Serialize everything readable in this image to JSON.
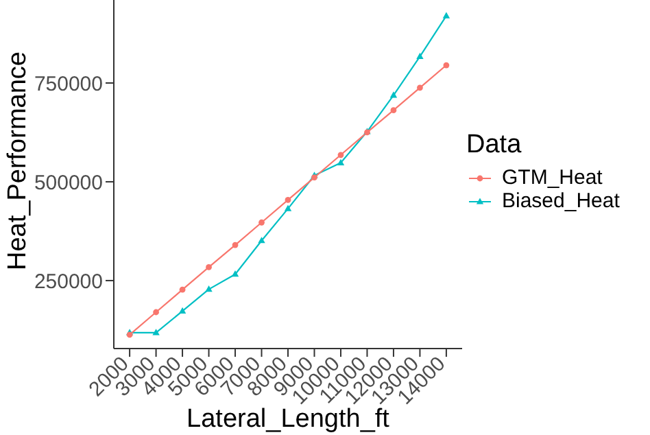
{
  "chart_data": {
    "type": "line",
    "xlabel": "Lateral_Length_ft",
    "ylabel": "Heat_Performance",
    "legend_title": "Data",
    "legend": "right",
    "grid": false,
    "x": [
      2000,
      3000,
      4000,
      5000,
      6000,
      7000,
      8000,
      9000,
      10000,
      11000,
      12000,
      13000,
      14000
    ],
    "xlim": [
      1400,
      14600
    ],
    "xticks": [
      2000,
      3000,
      4000,
      5000,
      6000,
      7000,
      8000,
      9000,
      10000,
      11000,
      12000,
      13000,
      14000
    ],
    "ylim": [
      78000,
      960000
    ],
    "yticks": [
      250000,
      500000,
      750000
    ],
    "series": [
      {
        "name": "GTM_Heat",
        "color": "#f8766d",
        "marker": "circle",
        "values": [
          113000,
          170000,
          227000,
          284000,
          340000,
          397000,
          454000,
          511000,
          568000,
          625000,
          681000,
          738000,
          795000
        ]
      },
      {
        "name": "Biased_Heat",
        "color": "#00bfc4",
        "marker": "triangle",
        "values": [
          118000,
          118000,
          173000,
          228000,
          266000,
          351000,
          432000,
          516000,
          548000,
          627000,
          719000,
          817000,
          920000
        ]
      }
    ]
  }
}
